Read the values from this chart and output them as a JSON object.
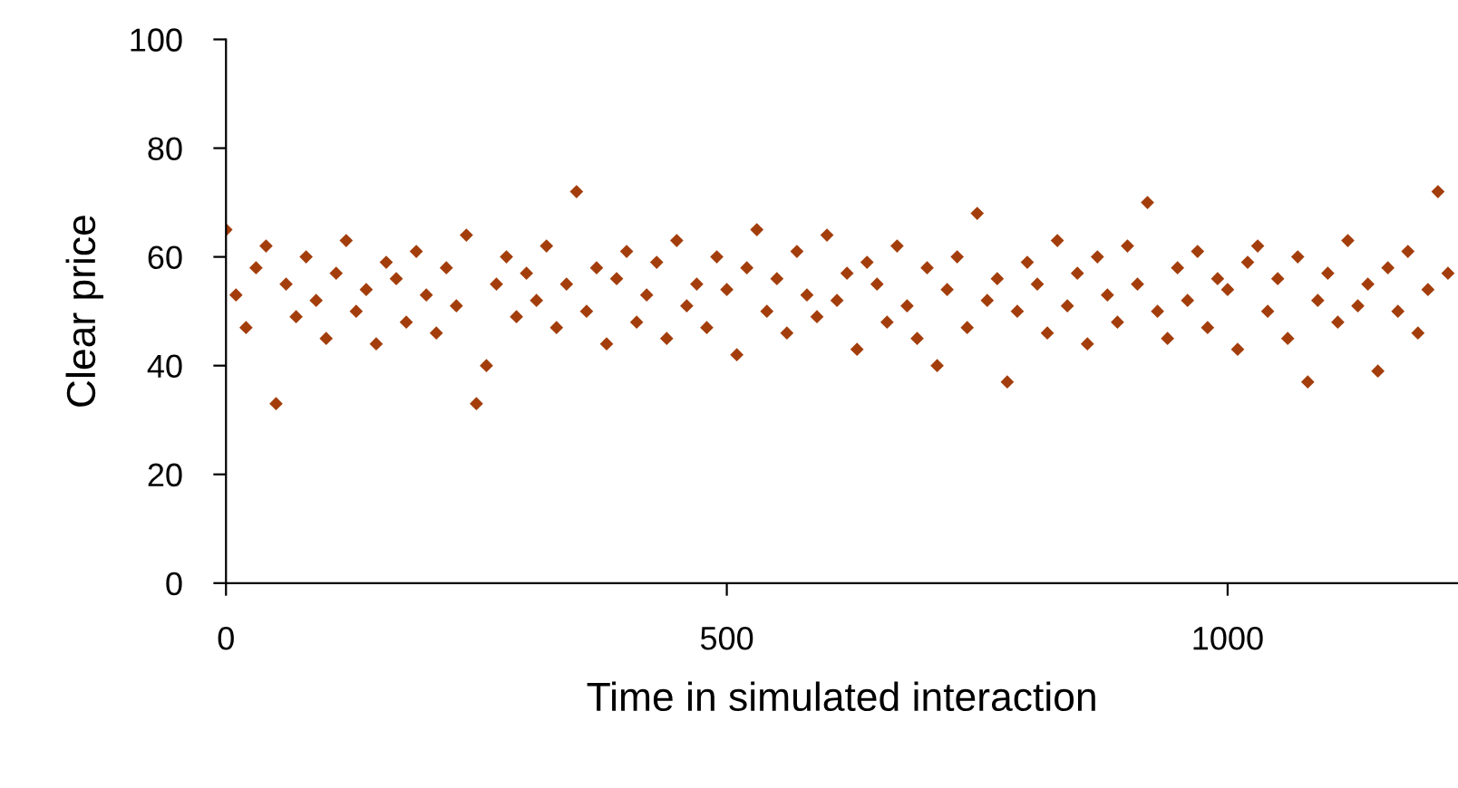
{
  "chart_data": {
    "type": "scatter",
    "xlabel": "Time in simulated interaction",
    "ylabel": "Clear price",
    "xlim": [
      0,
      1230
    ],
    "xticks": [
      0,
      500,
      1000
    ],
    "ylim": [
      0,
      100
    ],
    "yticks": [
      0,
      20,
      40,
      60,
      80,
      100
    ],
    "grid": false,
    "legend": false,
    "marker": "diamond",
    "series": [
      {
        "color": "#a33e0c",
        "x": [
          0,
          10,
          20,
          30,
          40,
          50,
          60,
          70,
          80,
          90,
          100,
          110,
          120,
          130,
          140,
          150,
          160,
          170,
          180,
          190,
          200,
          210,
          220,
          230,
          240,
          250,
          260,
          270,
          280,
          290,
          300,
          310,
          320,
          330,
          340,
          350,
          360,
          370,
          380,
          390,
          400,
          410,
          420,
          430,
          440,
          450,
          460,
          470,
          480,
          490,
          500,
          510,
          520,
          530,
          540,
          550,
          560,
          570,
          580,
          590,
          600,
          610,
          620,
          630,
          640,
          650,
          660,
          670,
          680,
          690,
          700,
          710,
          720,
          730,
          740,
          750,
          760,
          770,
          780,
          790,
          800,
          810,
          820,
          830,
          840,
          850,
          860,
          870,
          880,
          890,
          900,
          910,
          920,
          930,
          940,
          950,
          960,
          970,
          980,
          990,
          1000,
          1010,
          1020,
          1030,
          1040,
          1050,
          1060,
          1070,
          1080,
          1090,
          1100,
          1110,
          1120,
          1130,
          1140,
          1150,
          1160,
          1170,
          1180,
          1190,
          1200,
          1210,
          1220
        ],
        "values": [
          65,
          53,
          47,
          58,
          62,
          33,
          55,
          49,
          60,
          52,
          45,
          57,
          63,
          50,
          54,
          44,
          59,
          56,
          48,
          61,
          53,
          46,
          58,
          51,
          64,
          33,
          40,
          55,
          60,
          49,
          57,
          52,
          62,
          47,
          55,
          72,
          50,
          58,
          44,
          56,
          61,
          48,
          53,
          59,
          45,
          63,
          51,
          55,
          47,
          60,
          54,
          42,
          58,
          65,
          50,
          56,
          46,
          61,
          53,
          49,
          64,
          52,
          57,
          43,
          59,
          55,
          48,
          62,
          51,
          45,
          58,
          40,
          54,
          60,
          47,
          68,
          52,
          56,
          37,
          50,
          59,
          55,
          46,
          63,
          51,
          57,
          44,
          60,
          53,
          48,
          62,
          55,
          70,
          50,
          45,
          58,
          52,
          61,
          47,
          56,
          54,
          43,
          59,
          62,
          50,
          56,
          45,
          60,
          37,
          52,
          57,
          48,
          63,
          51,
          55,
          39,
          58,
          50,
          61,
          46,
          54,
          72,
          57
        ]
      }
    ]
  }
}
